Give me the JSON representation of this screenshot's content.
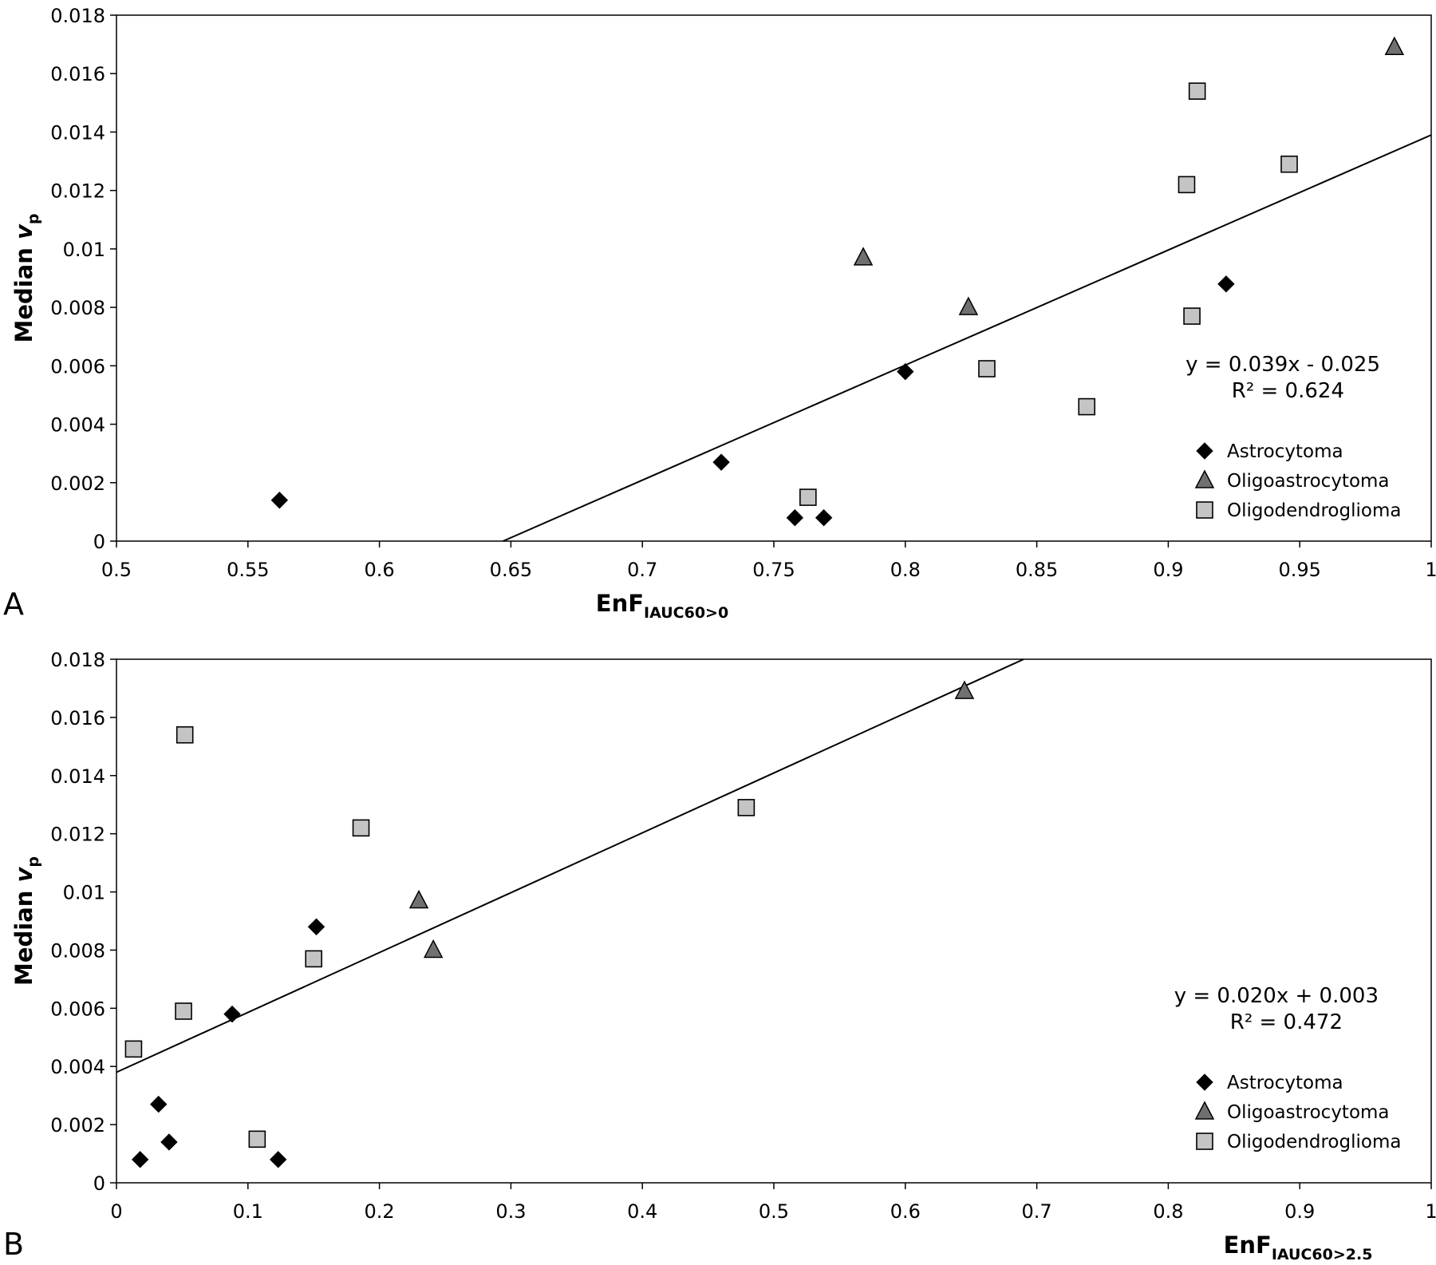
{
  "colors": {
    "Astrocytoma": "#000000",
    "Oligoastrocytoma": "#707070",
    "Oligodendroglioma": "#c4c4c4"
  },
  "chart_data": [
    {
      "panel": "A",
      "type": "scatter",
      "xlabel": "EnF",
      "xlabel_sub": "IAUC60>0",
      "ylabel": "Median ",
      "ylabel_var": "v",
      "ylabel_sub": "p",
      "xlim": [
        0.5,
        1
      ],
      "ylim": [
        0,
        0.018
      ],
      "xticks": [
        0.5,
        0.55,
        0.6,
        0.65,
        0.7,
        0.75,
        0.8,
        0.85,
        0.9,
        0.95,
        1
      ],
      "xtick_labels": [
        "0.5",
        "0.55",
        "0.6",
        "0.65",
        "0.7",
        "0.75",
        "0.8",
        "0.85",
        "0.9",
        "0.95",
        "1"
      ],
      "yticks": [
        0,
        0.002,
        0.004,
        0.006,
        0.008,
        0.01,
        0.012,
        0.014,
        0.016,
        0.018
      ],
      "ytick_labels": [
        "0",
        "0.002",
        "0.004",
        "0.006",
        "0.008",
        "0.01",
        "0.012",
        "0.014",
        "0.016",
        "0.018"
      ],
      "grid": false,
      "legend_position": "bottom-right",
      "series": [
        {
          "name": "Astrocytoma",
          "marker": "diamond",
          "points": [
            [
              0.562,
              0.0014
            ],
            [
              0.73,
              0.0027
            ],
            [
              0.758,
              0.0008
            ],
            [
              0.769,
              0.0008
            ],
            [
              0.8,
              0.0058
            ],
            [
              0.922,
              0.0088
            ]
          ]
        },
        {
          "name": "Oligoastrocytoma",
          "marker": "triangle",
          "points": [
            [
              0.784,
              0.0097
            ],
            [
              0.824,
              0.008
            ],
            [
              0.986,
              0.0169
            ]
          ]
        },
        {
          "name": "Oligodendroglioma",
          "marker": "square",
          "points": [
            [
              0.763,
              0.0015
            ],
            [
              0.831,
              0.0059
            ],
            [
              0.869,
              0.0046
            ],
            [
              0.907,
              0.0122
            ],
            [
              0.909,
              0.0077
            ],
            [
              0.911,
              0.0154
            ],
            [
              0.946,
              0.0129
            ]
          ]
        }
      ],
      "trendline": {
        "x": [
          0.647,
          1
        ],
        "y": [
          0,
          0.0139
        ]
      },
      "equation": "y = 0.039x - 0.025",
      "r2": "R² = 0.624"
    },
    {
      "panel": "B",
      "type": "scatter",
      "xlabel": "EnF",
      "xlabel_sub": "IAUC60>2.5",
      "ylabel": "Median ",
      "ylabel_var": "v",
      "ylabel_sub": "p",
      "xlim": [
        0,
        1
      ],
      "ylim": [
        0,
        0.018
      ],
      "xticks": [
        0,
        0.1,
        0.2,
        0.3,
        0.4,
        0.5,
        0.6,
        0.7,
        0.8,
        0.9,
        1
      ],
      "xtick_labels": [
        "0",
        "0.1",
        "0.2",
        "0.3",
        "0.4",
        "0.5",
        "0.6",
        "0.7",
        "0.8",
        "0.9",
        "1"
      ],
      "yticks": [
        0,
        0.002,
        0.004,
        0.006,
        0.008,
        0.01,
        0.012,
        0.014,
        0.016,
        0.018
      ],
      "ytick_labels": [
        "0",
        "0.002",
        "0.004",
        "0.006",
        "0.008",
        "0.01",
        "0.012",
        "0.014",
        "0.016",
        "0.018"
      ],
      "grid": false,
      "legend_position": "bottom-right",
      "series": [
        {
          "name": "Astrocytoma",
          "marker": "diamond",
          "points": [
            [
              0.018,
              0.0008
            ],
            [
              0.032,
              0.0027
            ],
            [
              0.04,
              0.0014
            ],
            [
              0.088,
              0.0058
            ],
            [
              0.123,
              0.0008
            ],
            [
              0.152,
              0.0088
            ]
          ]
        },
        {
          "name": "Oligoastrocytoma",
          "marker": "triangle",
          "points": [
            [
              0.23,
              0.0097
            ],
            [
              0.241,
              0.008
            ],
            [
              0.645,
              0.0169
            ]
          ]
        },
        {
          "name": "Oligodendroglioma",
          "marker": "square",
          "points": [
            [
              0.013,
              0.0046
            ],
            [
              0.051,
              0.0059
            ],
            [
              0.052,
              0.0154
            ],
            [
              0.107,
              0.0015
            ],
            [
              0.15,
              0.0077
            ],
            [
              0.186,
              0.0122
            ],
            [
              0.479,
              0.0129
            ]
          ]
        }
      ],
      "trendline": {
        "x": [
          0,
          0.69
        ],
        "y": [
          0.0038,
          0.018
        ]
      },
      "equation": "y = 0.020x + 0.003",
      "r2": "R² = 0.472"
    }
  ]
}
